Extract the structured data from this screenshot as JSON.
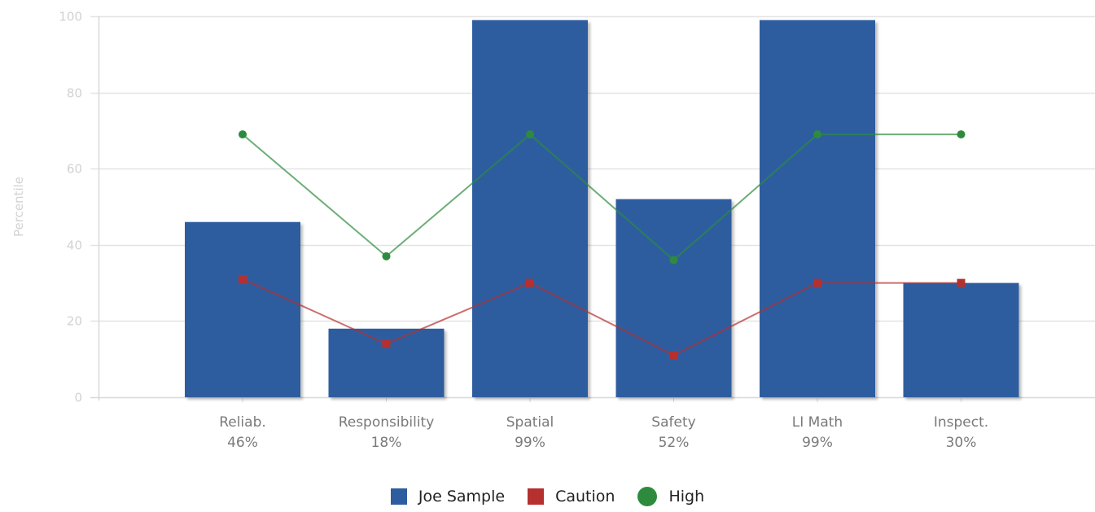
{
  "chart_data": {
    "type": "bar",
    "ylabel": "Percentile",
    "ylim": [
      0,
      100
    ],
    "yticks": [
      0,
      20,
      40,
      60,
      80,
      100
    ],
    "grid": true,
    "legend_position": "bottom-center",
    "categories": [
      {
        "name": "Reliab.",
        "pct": "46%"
      },
      {
        "name": "Responsibility",
        "pct": "18%"
      },
      {
        "name": "Spatial",
        "pct": "99%"
      },
      {
        "name": "Safety",
        "pct": "52%"
      },
      {
        "name": "LI Math",
        "pct": "99%"
      },
      {
        "name": "Inspect.",
        "pct": "30%"
      }
    ],
    "series": [
      {
        "name": "Joe Sample",
        "type": "bar",
        "color": "#2e5d9f",
        "values": [
          46,
          18,
          99,
          52,
          99,
          30
        ]
      },
      {
        "name": "Caution",
        "type": "line",
        "marker": "square",
        "color": "#b5302f",
        "values": [
          31,
          14,
          30,
          11,
          30,
          30
        ]
      },
      {
        "name": "High",
        "type": "line",
        "marker": "circle",
        "color": "#2e8b3e",
        "values": [
          69,
          37,
          69,
          36,
          69,
          69
        ]
      }
    ]
  }
}
